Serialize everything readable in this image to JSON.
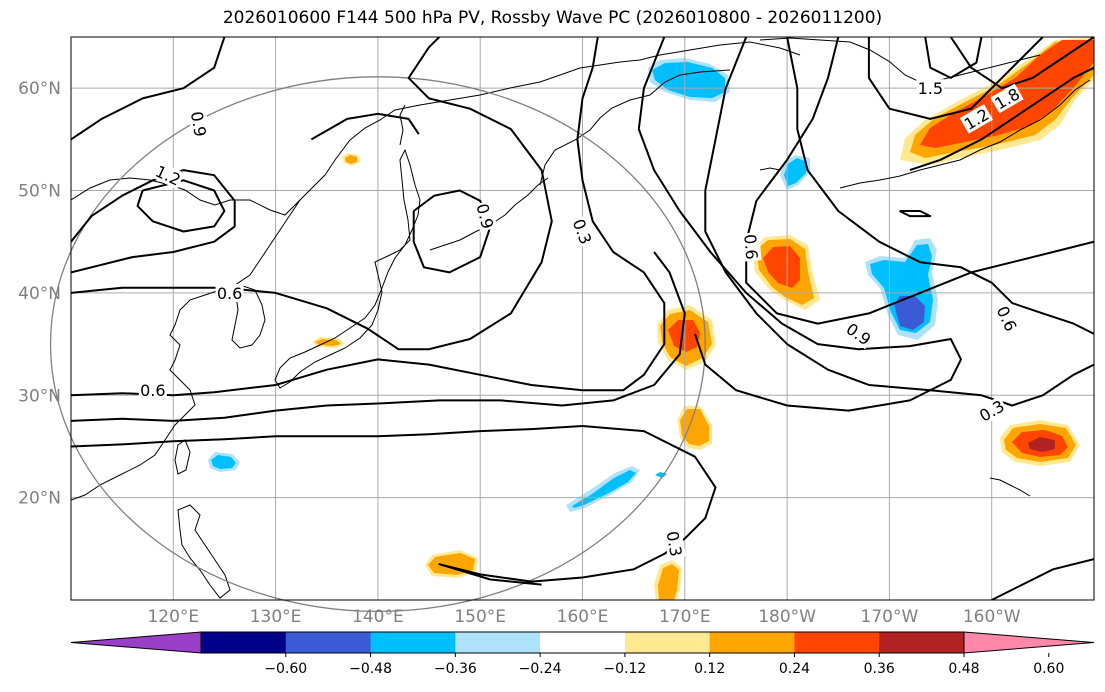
{
  "title": "2026010600 F144 500 hPa PV, Rossby Wave PC (2026010800 - 2026011200)",
  "map": {
    "projection": "PlateCarree",
    "lon_range": [
      110,
      210
    ],
    "lat_range": [
      10,
      65
    ],
    "lat_ticks": [
      {
        "value": 20,
        "label": "20°N"
      },
      {
        "value": 30,
        "label": "30°N"
      },
      {
        "value": 40,
        "label": "40°N"
      },
      {
        "value": 50,
        "label": "50°N"
      },
      {
        "value": 60,
        "label": "60°N"
      }
    ],
    "lon_ticks": [
      {
        "value": 120,
        "label": "120°E"
      },
      {
        "value": 130,
        "label": "130°E"
      },
      {
        "value": 140,
        "label": "140°E"
      },
      {
        "value": 150,
        "label": "150°E"
      },
      {
        "value": 160,
        "label": "160°E"
      },
      {
        "value": 170,
        "label": "170°E"
      },
      {
        "value": 180,
        "label": "180°W"
      },
      {
        "value": 190,
        "label": "170°W"
      },
      {
        "value": 200,
        "label": "160°W"
      }
    ],
    "grid": true,
    "region_circle": {
      "lon": 140,
      "lat": 35,
      "radius_deg": 32,
      "color": "#808080"
    }
  },
  "colorbar": {
    "colors": [
      "#9a3fc8",
      "#00008b",
      "#3b5bd6",
      "#00bfff",
      "#aee2fa",
      "#ffffff",
      "#ffe990",
      "#ffa500",
      "#ff4500",
      "#b22222",
      "#ff88aa"
    ],
    "ticks": [
      "−0.60",
      "−0.48",
      "−0.36",
      "−0.24",
      "−0.12",
      "0.12",
      "0.24",
      "0.36",
      "0.48",
      "0.60"
    ]
  },
  "pv_contour_labels": [
    {
      "text": "0.9",
      "lon": 122.5,
      "lat": 56.5,
      "rot": 80
    },
    {
      "text": "1.2",
      "lon": 119.5,
      "lat": 51.5,
      "rot": 25
    },
    {
      "text": "0.9",
      "lon": 150.5,
      "lat": 47.5,
      "rot": 75
    },
    {
      "text": "0.3",
      "lon": 160.0,
      "lat": 46.0,
      "rot": 70
    },
    {
      "text": "0.6",
      "lon": 125.5,
      "lat": 40.0,
      "rot": 0
    },
    {
      "text": "0.6",
      "lon": 118.0,
      "lat": 30.5,
      "rot": 0
    },
    {
      "text": "0.3",
      "lon": 169.0,
      "lat": 15.5,
      "rot": 80
    },
    {
      "text": "0.6",
      "lon": 176.5,
      "lat": 44.5,
      "rot": 85
    },
    {
      "text": "0.9",
      "lon": 187.0,
      "lat": 36.0,
      "rot": 35
    },
    {
      "text": "0.6",
      "lon": 201.5,
      "lat": 37.5,
      "rot": 65
    },
    {
      "text": "0.3",
      "lon": 200.0,
      "lat": 28.5,
      "rot": -30
    },
    {
      "text": "1.5",
      "lon": 194.0,
      "lat": 60.0,
      "rot": 0
    },
    {
      "text": "1.2",
      "lon": 198.5,
      "lat": 57.0,
      "rot": -30
    },
    {
      "text": "1.8",
      "lon": 201.5,
      "lat": 59.0,
      "rot": -30
    }
  ],
  "pv_contours": [
    [
      [
        110,
        55
      ],
      [
        113,
        57
      ],
      [
        117,
        59
      ],
      [
        121,
        60
      ],
      [
        124,
        62
      ],
      [
        125,
        65
      ]
    ],
    [
      [
        110,
        45
      ],
      [
        112,
        47.5
      ],
      [
        115,
        49.5
      ],
      [
        118,
        51
      ],
      [
        121,
        52
      ],
      [
        124,
        51.5
      ],
      [
        126,
        49
      ],
      [
        126,
        46.5
      ],
      [
        124,
        45
      ],
      [
        120,
        44
      ],
      [
        116,
        43.5
      ],
      [
        112,
        42.5
      ],
      [
        110,
        42
      ]
    ],
    [
      [
        117,
        50
      ],
      [
        121,
        51
      ],
      [
        124,
        50
      ],
      [
        125,
        48
      ],
      [
        124,
        46.5
      ],
      [
        121,
        46
      ],
      [
        118,
        47
      ],
      [
        116.5,
        48.5
      ],
      [
        117,
        50
      ]
    ],
    [
      [
        110,
        40
      ],
      [
        115,
        40.5
      ],
      [
        120,
        40.5
      ],
      [
        125,
        40.5
      ],
      [
        130,
        40
      ],
      [
        135,
        38.5
      ],
      [
        139,
        36.5
      ],
      [
        142,
        34.5
      ],
      [
        145,
        34.5
      ],
      [
        149,
        35.5
      ],
      [
        153,
        38
      ],
      [
        156,
        43
      ],
      [
        157,
        47
      ],
      [
        156,
        52
      ],
      [
        153,
        56
      ],
      [
        149,
        58
      ],
      [
        145,
        59
      ],
      [
        143,
        61
      ],
      [
        145,
        64
      ],
      [
        146,
        65
      ]
    ],
    [
      [
        110,
        30
      ],
      [
        115,
        30.2
      ],
      [
        120,
        30
      ],
      [
        124,
        30.3
      ],
      [
        130,
        31
      ],
      [
        135,
        32.5
      ],
      [
        140,
        33.5
      ],
      [
        145,
        33
      ],
      [
        150,
        32
      ],
      [
        155,
        31
      ],
      [
        160,
        30.5
      ],
      [
        164,
        30.5
      ],
      [
        166,
        32
      ],
      [
        168,
        35
      ],
      [
        168,
        39
      ],
      [
        166,
        42
      ],
      [
        163,
        44
      ],
      [
        161,
        47
      ],
      [
        160,
        51
      ],
      [
        159.5,
        55
      ],
      [
        160,
        59
      ],
      [
        161,
        62
      ],
      [
        161.5,
        65
      ]
    ],
    [
      [
        110,
        27.5
      ],
      [
        115,
        27.7
      ],
      [
        120,
        27.5
      ],
      [
        125,
        27.8
      ],
      [
        130,
        28.5
      ],
      [
        135,
        29
      ],
      [
        140,
        29.2
      ],
      [
        146,
        29.5
      ],
      [
        152,
        29.5
      ],
      [
        158,
        29
      ],
      [
        163,
        29.5
      ],
      [
        167,
        31
      ],
      [
        169.5,
        34
      ],
      [
        170,
        38
      ],
      [
        168.5,
        42
      ],
      [
        167,
        44
      ]
    ],
    [
      [
        110,
        25
      ],
      [
        115,
        25.2
      ],
      [
        120,
        25.5
      ],
      [
        125,
        25.7
      ],
      [
        130,
        26
      ],
      [
        135,
        26
      ],
      [
        140,
        26
      ],
      [
        145,
        26.2
      ],
      [
        150,
        26.5
      ],
      [
        155,
        26.7
      ],
      [
        160,
        27
      ],
      [
        166,
        26.5
      ],
      [
        171,
        24
      ],
      [
        173,
        21
      ],
      [
        172,
        18
      ],
      [
        170,
        16
      ],
      [
        168,
        14.5
      ],
      [
        165,
        13
      ],
      [
        160,
        12.2
      ],
      [
        155,
        11.8
      ],
      [
        150,
        12.5
      ],
      [
        146,
        13.5
      ],
      [
        151,
        12
      ],
      [
        156,
        11.5
      ]
    ],
    [
      [
        176,
        65
      ],
      [
        174,
        60
      ],
      [
        173,
        55
      ],
      [
        172,
        50
      ],
      [
        172,
        46
      ],
      [
        174,
        42
      ],
      [
        177,
        38
      ],
      [
        180,
        35
      ],
      [
        184,
        32.5
      ],
      [
        188,
        31
      ],
      [
        194,
        30.5
      ],
      [
        199,
        30
      ],
      [
        202,
        29
      ],
      [
        205,
        30
      ],
      [
        208,
        32
      ],
      [
        210,
        33
      ]
    ],
    [
      [
        168,
        65
      ],
      [
        166,
        60
      ],
      [
        165.5,
        56
      ],
      [
        167,
        52
      ],
      [
        169.5,
        48
      ],
      [
        172.5,
        44
      ],
      [
        176,
        40
      ],
      [
        179.5,
        37
      ],
      [
        183,
        35
      ],
      [
        187,
        34.5
      ],
      [
        192,
        34.8
      ],
      [
        196,
        35.5
      ],
      [
        197,
        33.5
      ],
      [
        196,
        31.5
      ],
      [
        192,
        29.5
      ],
      [
        186,
        28.5
      ],
      [
        180,
        29
      ],
      [
        175,
        30.5
      ],
      [
        172,
        33
      ],
      [
        171,
        36
      ]
    ],
    [
      [
        185,
        65
      ],
      [
        184,
        61
      ],
      [
        182.5,
        57
      ],
      [
        180,
        53
      ],
      [
        177,
        49
      ],
      [
        176,
        45
      ],
      [
        176,
        41
      ],
      [
        179,
        38
      ],
      [
        183,
        37
      ],
      [
        188,
        38
      ],
      [
        193,
        40
      ],
      [
        198,
        42
      ],
      [
        202,
        43
      ],
      [
        206,
        44
      ],
      [
        210,
        45
      ]
    ],
    [
      [
        180,
        65
      ],
      [
        181,
        60
      ],
      [
        181,
        56
      ],
      [
        182,
        52
      ],
      [
        185,
        48
      ],
      [
        189,
        45
      ],
      [
        193,
        43
      ],
      [
        197,
        42.5
      ],
      [
        200,
        41
      ],
      [
        202,
        39
      ],
      [
        205,
        38
      ],
      [
        208,
        37
      ],
      [
        210,
        36
      ]
    ],
    [
      [
        188,
        65
      ],
      [
        188,
        61
      ],
      [
        190,
        58
      ],
      [
        194,
        57
      ],
      [
        198,
        58
      ],
      [
        201,
        61
      ],
      [
        204,
        64
      ],
      [
        205,
        65
      ]
    ],
    [
      [
        196,
        65
      ],
      [
        198,
        62
      ],
      [
        201,
        60
      ],
      [
        204,
        61
      ],
      [
        207,
        63
      ],
      [
        210,
        65
      ]
    ],
    [
      [
        192,
        52
      ],
      [
        195,
        53
      ],
      [
        199,
        55
      ],
      [
        202,
        57
      ],
      [
        205,
        59
      ],
      [
        208,
        61
      ],
      [
        210,
        62
      ]
    ],
    [
      [
        191,
        48
      ],
      [
        193,
        48
      ],
      [
        194,
        47.5
      ],
      [
        192,
        47.5
      ],
      [
        191,
        48
      ]
    ],
    [
      [
        193.5,
        65
      ],
      [
        194,
        62
      ],
      [
        196,
        61
      ],
      [
        198.5,
        62.5
      ],
      [
        199,
        65
      ]
    ],
    [
      [
        210,
        14
      ],
      [
        206,
        13
      ],
      [
        203,
        11.5
      ],
      [
        200,
        10
      ]
    ],
    [
      [
        133.5,
        55
      ],
      [
        137,
        57
      ],
      [
        140,
        57.5
      ],
      [
        143,
        57
      ],
      [
        144,
        55.5
      ]
    ],
    [
      [
        143.5,
        48
      ],
      [
        145.5,
        49.5
      ],
      [
        148,
        50
      ],
      [
        150,
        49
      ],
      [
        151,
        46.5
      ],
      [
        150,
        43.5
      ],
      [
        147,
        42
      ],
      [
        144.5,
        42.5
      ],
      [
        143.5,
        45
      ],
      [
        143.5,
        48
      ]
    ]
  ]
}
